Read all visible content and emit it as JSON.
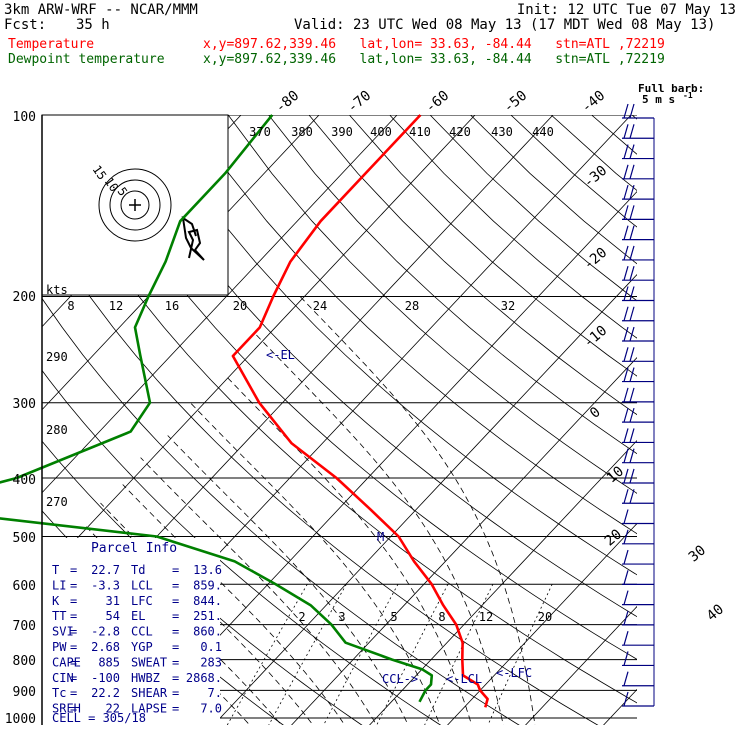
{
  "header": {
    "model": "3km ARW-WRF -- NCAR/MMM",
    "init": "Init: 12 UTC Tue 07 May 13",
    "fcst_label": "Fcst:",
    "fcst_value": "35 h",
    "valid": "Valid: 23 UTC Wed 08 May 13 (17 MDT Wed 08 May 13)",
    "temp_label": "Temperature",
    "dew_label": "Dewpoint temperature",
    "temp_info": "x,y=897.62,339.46   lat,lon= 33.63, -84.44   stn=ATL ,72219",
    "dew_info": "x,y=897.62,339.46   lat,lon= 33.63, -84.44   stn=ATL ,72219"
  },
  "colors": {
    "temperature": "#ff0000",
    "dewpoint": "#008000",
    "header_dew": "#006400",
    "parcel": "#00008b",
    "barbs": "#000080"
  },
  "barb_legend": {
    "title": "Full barb:",
    "value": "5 m s",
    "sup": "-1"
  },
  "hodograph": {
    "units": "kts",
    "ring_labels": [
      "15",
      "10",
      "5"
    ]
  },
  "parcel_info": {
    "title": "Parcel Info",
    "rows": [
      {
        "k1": "T",
        "v1": "22.7",
        "k2": "Td",
        "v2": "13.6"
      },
      {
        "k1": "LI",
        "v1": "-3.3",
        "k2": "LCL",
        "v2": "859."
      },
      {
        "k1": "K",
        "v1": "31",
        "k2": "LFC",
        "v2": "844."
      },
      {
        "k1": "TT",
        "v1": "54",
        "k2": "EL",
        "v2": "251."
      },
      {
        "k1": "SVI",
        "v1": "-2.8",
        "k2": "CCL",
        "v2": "860."
      },
      {
        "k1": "PW",
        "v1": "2.68",
        "k2": "YGP",
        "v2": "0.1"
      },
      {
        "k1": "CAPE",
        "v1": "885",
        "k2": "SWEAT",
        "v2": "283"
      },
      {
        "k1": "CIN",
        "v1": "-100",
        "k2": "HWBZ",
        "v2": "2868."
      },
      {
        "k1": "Tc",
        "v1": "22.2",
        "k2": "SHEAR",
        "v2": "7."
      },
      {
        "k1": "SREH",
        "v1": "22",
        "k2": "LAPSE",
        "v2": "7.0"
      }
    ],
    "cell": "CELL = 305/18"
  },
  "level_labels": {
    "el": "<-EL",
    "ccl": "CCL->",
    "lcl": "<-LCL",
    "lfc": "<-LFC",
    "m": "M"
  },
  "chart_data": {
    "type": "line",
    "title": "",
    "pressure_axis": {
      "ticks": [
        100,
        200,
        300,
        400,
        500,
        600,
        700,
        800,
        900,
        1000
      ],
      "log_scale": true
    },
    "temperature_axis_labels": [
      "-80",
      "-70",
      "-60",
      "-50",
      "-40",
      "-30",
      "-20",
      "-10",
      "0",
      "10",
      "20",
      "30",
      "40"
    ],
    "theta_labels": [
      "370",
      "380",
      "390",
      "400",
      "410",
      "420",
      "430",
      "440"
    ],
    "theta_e_labels": [
      "290",
      "280",
      "270"
    ],
    "mixing_ratio_labels_top": [
      "8",
      "12",
      "16",
      "20",
      "24",
      "28",
      "32"
    ],
    "mixing_ratio_labels_low": [
      "2",
      "3",
      "5",
      "8",
      "12",
      "20"
    ],
    "series": [
      {
        "name": "Temperature",
        "points": [
          [
            100,
            -57
          ],
          [
            125,
            -57
          ],
          [
            150,
            -57
          ],
          [
            175,
            -56
          ],
          [
            200,
            -54
          ],
          [
            225,
            -52
          ],
          [
            251,
            -52
          ],
          [
            300,
            -43
          ],
          [
            350,
            -34
          ],
          [
            400,
            -24
          ],
          [
            450,
            -16
          ],
          [
            500,
            -9
          ],
          [
            550,
            -4
          ],
          [
            600,
            1
          ],
          [
            650,
            5
          ],
          [
            700,
            9
          ],
          [
            750,
            12
          ],
          [
            800,
            14
          ],
          [
            850,
            16
          ],
          [
            880,
            19
          ],
          [
            900,
            20
          ],
          [
            930,
            22
          ],
          [
            960,
            22.7
          ]
        ]
      },
      {
        "name": "Dewpoint temperature",
        "points": [
          [
            100,
            -76
          ],
          [
            125,
            -75
          ],
          [
            150,
            -75
          ],
          [
            175,
            -72
          ],
          [
            200,
            -70
          ],
          [
            225,
            -68
          ],
          [
            250,
            -64
          ],
          [
            300,
            -57
          ],
          [
            335,
            -56
          ],
          [
            400,
            -65
          ],
          [
            430,
            -72
          ],
          [
            460,
            -67
          ],
          [
            500,
            -40
          ],
          [
            550,
            -27
          ],
          [
            600,
            -19
          ],
          [
            650,
            -12
          ],
          [
            700,
            -7
          ],
          [
            750,
            -3
          ],
          [
            800,
            5
          ],
          [
            830,
            10
          ],
          [
            850,
            12
          ],
          [
            880,
            13
          ],
          [
            900,
            13
          ],
          [
            940,
            13.6
          ]
        ]
      }
    ],
    "wind_barbs_count": 30
  }
}
